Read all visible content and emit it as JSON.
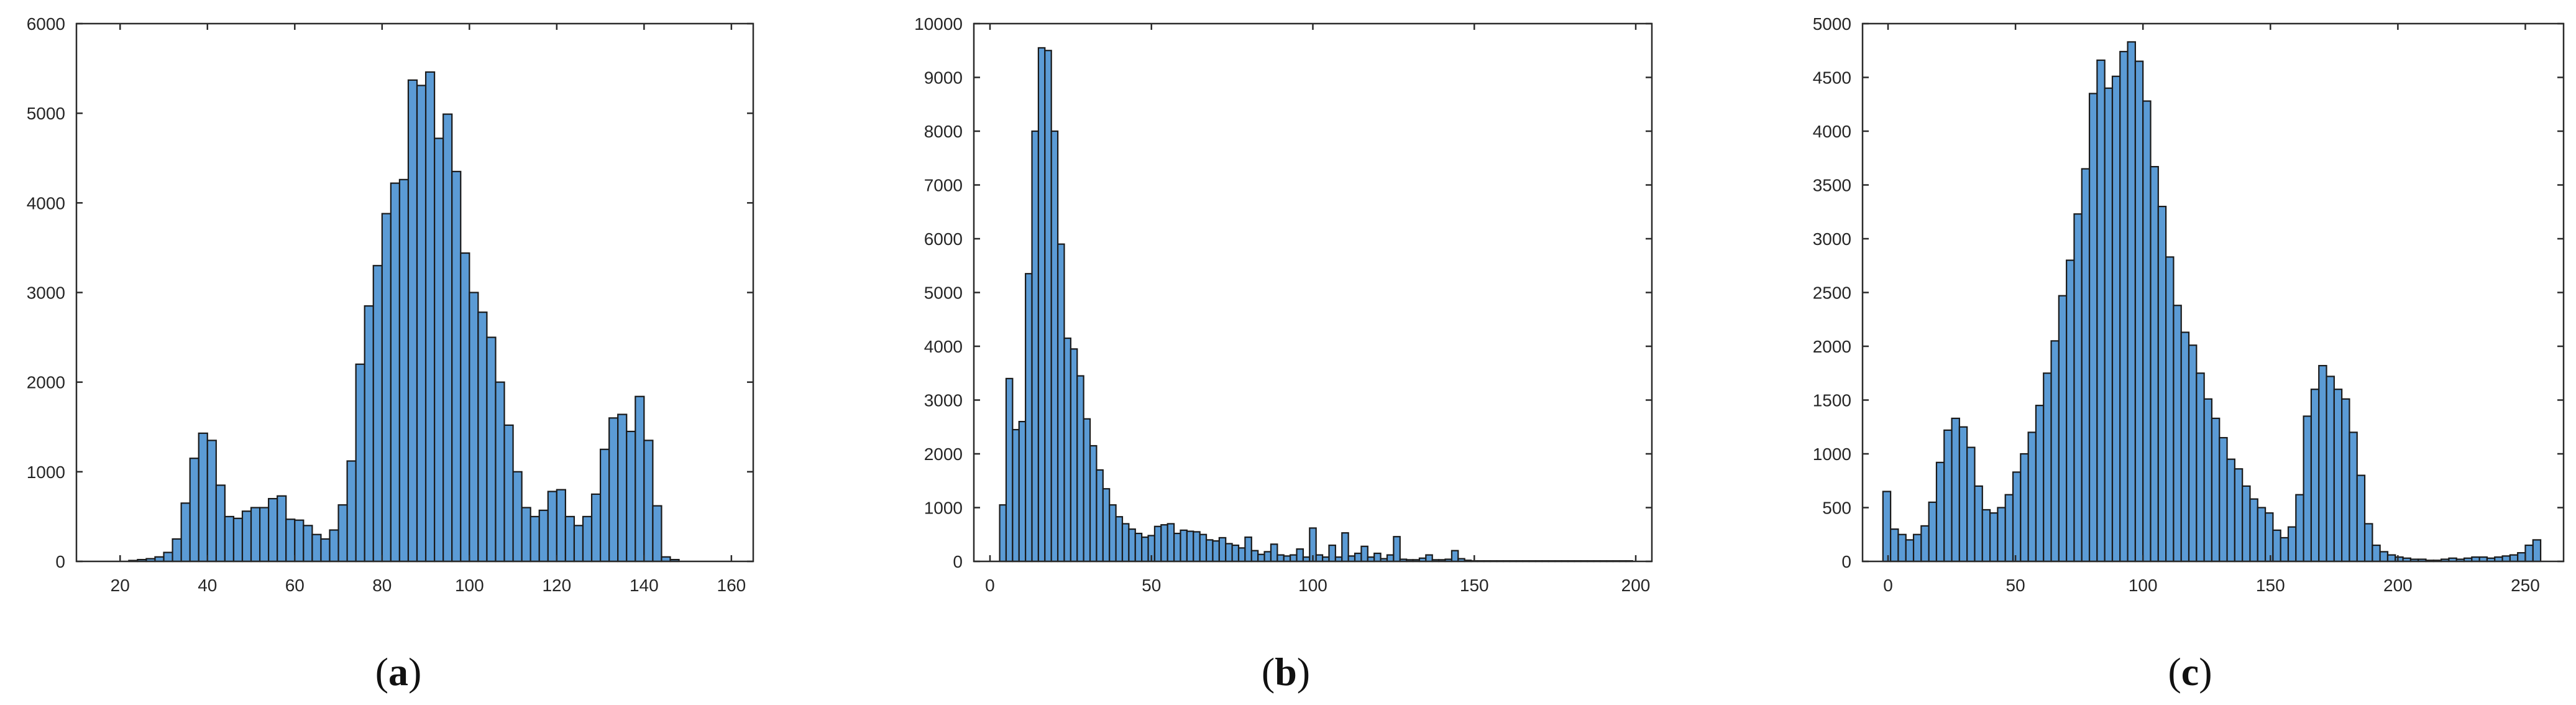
{
  "colors": {
    "bar_fill": "#5b9bd5",
    "bar_edge": "#1a1a1a",
    "axis": "#2b2b2b"
  },
  "chart_data": [
    {
      "type": "bar",
      "panel_label": "a",
      "xlim": [
        10,
        165
      ],
      "ylim": [
        0,
        6000
      ],
      "xticks": [
        20,
        40,
        60,
        80,
        100,
        120,
        140,
        160
      ],
      "yticks": [
        0,
        1000,
        2000,
        3000,
        4000,
        5000,
        6000
      ],
      "bin_start": 20,
      "bin_width": 2,
      "values": [
        0,
        10,
        20,
        30,
        50,
        100,
        250,
        650,
        1150,
        1430,
        1350,
        850,
        500,
        480,
        560,
        600,
        600,
        700,
        730,
        470,
        460,
        400,
        300,
        250,
        350,
        630,
        1120,
        2200,
        2850,
        3300,
        3880,
        4220,
        4260,
        5370,
        5310,
        5460,
        4720,
        4990,
        4350,
        3440,
        3000,
        2780,
        2500,
        2000,
        1520,
        1000,
        600,
        500,
        570,
        780,
        800,
        500,
        400,
        500,
        750,
        1250,
        1600,
        1640,
        1450,
        1840,
        1350,
        620,
        50,
        20
      ]
    },
    {
      "type": "bar",
      "panel_label": "b",
      "xlim": [
        -5,
        205
      ],
      "ylim": [
        0,
        10000
      ],
      "xticks": [
        0,
        50,
        100,
        150,
        200
      ],
      "yticks": [
        0,
        1000,
        2000,
        3000,
        4000,
        5000,
        6000,
        7000,
        8000,
        9000,
        10000
      ],
      "bin_start": 3,
      "bin_width": 2,
      "values": [
        1050,
        3400,
        2450,
        2600,
        5350,
        8000,
        9550,
        9500,
        8000,
        5900,
        4150,
        3950,
        3450,
        2650,
        2150,
        1700,
        1350,
        1050,
        830,
        700,
        600,
        520,
        450,
        480,
        650,
        680,
        700,
        520,
        580,
        560,
        550,
        500,
        400,
        380,
        440,
        330,
        300,
        250,
        450,
        200,
        130,
        180,
        320,
        120,
        100,
        120,
        230,
        80,
        620,
        120,
        80,
        300,
        80,
        530,
        100,
        150,
        280,
        80,
        150,
        50,
        120,
        460,
        40,
        30,
        30,
        60,
        120,
        30,
        30,
        40,
        200,
        50,
        20,
        10,
        10,
        10,
        10,
        10,
        10,
        10,
        10,
        10,
        10,
        10,
        10,
        10,
        10,
        10,
        10,
        10,
        10,
        10,
        10,
        10,
        10,
        10,
        10,
        10
      ]
    },
    {
      "type": "bar",
      "panel_label": "c",
      "xlim": [
        -10,
        265
      ],
      "ylim": [
        0,
        5000
      ],
      "xticks": [
        0,
        50,
        100,
        150,
        200,
        250
      ],
      "yticks": [
        0,
        500,
        1000,
        1500,
        2000,
        2500,
        3000,
        3500,
        4000,
        4500,
        5000
      ],
      "bin_start": -2,
      "bin_width": 3,
      "values": [
        650,
        300,
        250,
        200,
        250,
        330,
        550,
        920,
        1220,
        1330,
        1250,
        1060,
        700,
        480,
        450,
        500,
        620,
        830,
        1000,
        1200,
        1450,
        1750,
        2050,
        2470,
        2800,
        3230,
        3650,
        4350,
        4660,
        4400,
        4510,
        4740,
        4830,
        4650,
        4280,
        3670,
        3300,
        2830,
        2380,
        2130,
        2010,
        1750,
        1510,
        1330,
        1150,
        950,
        860,
        700,
        580,
        500,
        450,
        290,
        220,
        320,
        620,
        1350,
        1600,
        1820,
        1720,
        1600,
        1510,
        1200,
        800,
        350,
        150,
        90,
        60,
        40,
        30,
        20,
        20,
        10,
        10,
        20,
        30,
        20,
        30,
        40,
        40,
        30,
        40,
        50,
        60,
        80,
        150,
        200
      ]
    }
  ]
}
